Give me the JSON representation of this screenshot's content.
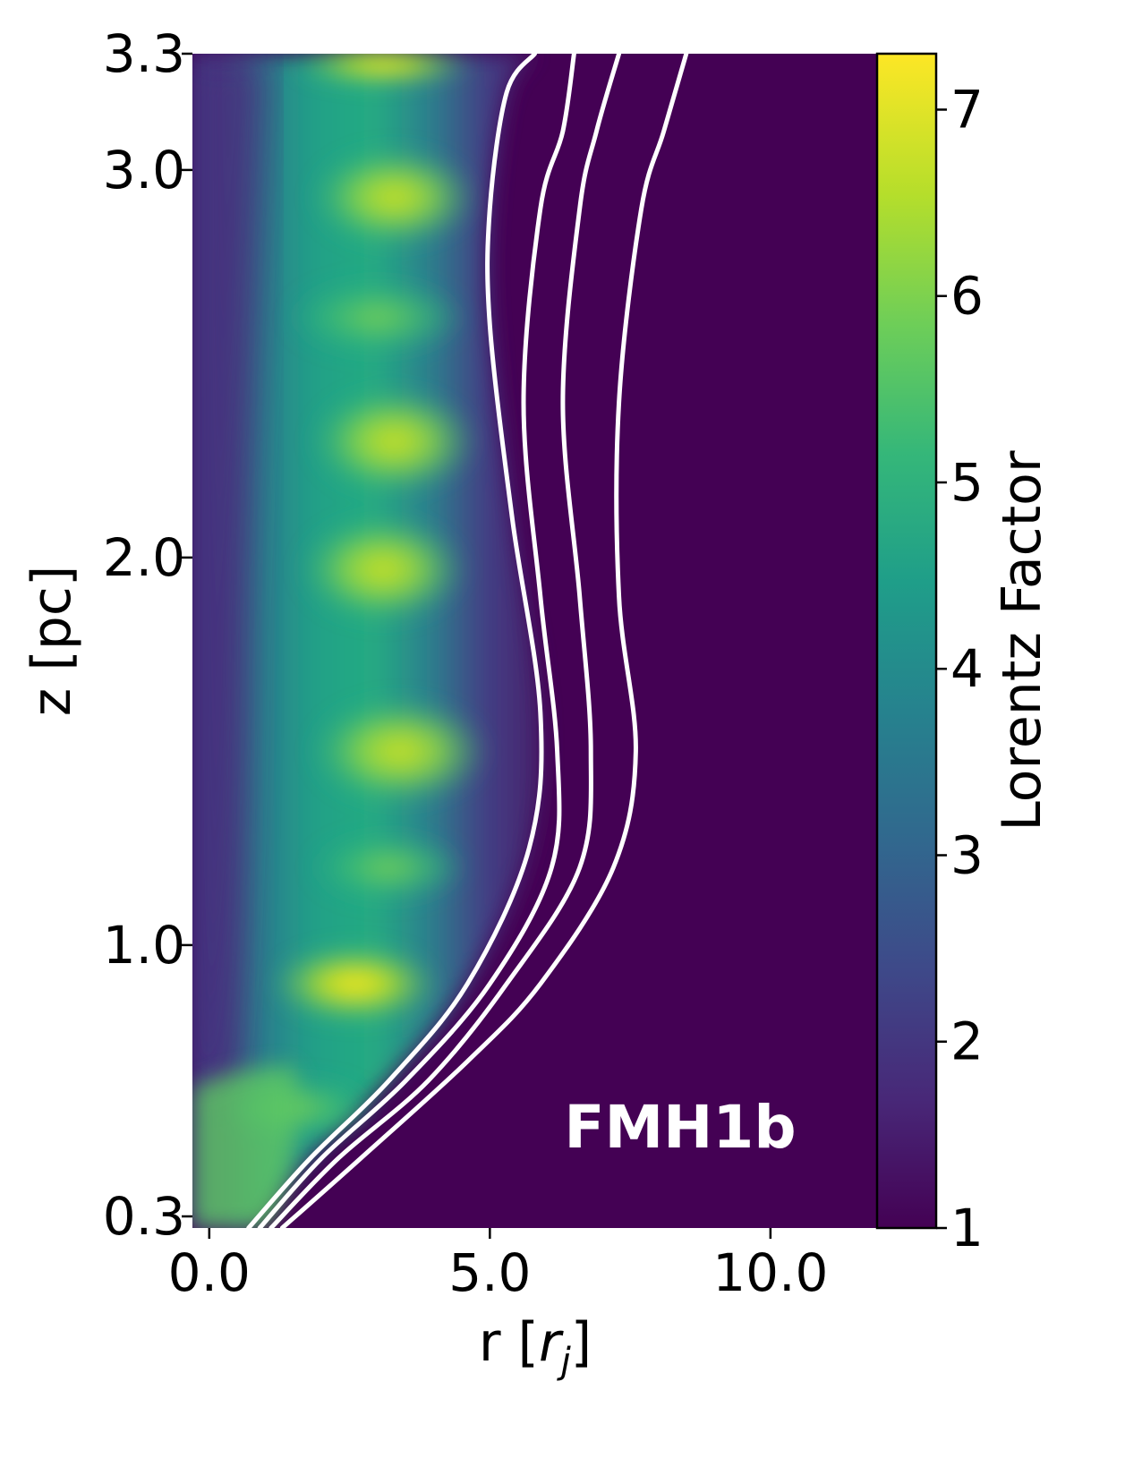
{
  "chart_data": {
    "type": "heatmap",
    "title": "",
    "xlabel": "r [",
    "xlabel_var": "r",
    "xlabel_sub": "j",
    "xlabel_close": "]",
    "ylabel": "z [pc]",
    "xlim": [
      -0.3,
      11.9
    ],
    "ylim": [
      0.27,
      3.3
    ],
    "x_ticks": [
      0.0,
      5.0,
      10.0
    ],
    "x_tick_labels": [
      "0.0",
      "5.0",
      "10.0"
    ],
    "y_ticks": [
      0.3,
      1.0,
      2.0,
      3.0,
      3.3
    ],
    "y_tick_labels": [
      "0.3",
      "1.0",
      "2.0",
      "3.0",
      "3.3"
    ],
    "colorbar": {
      "label": "Lorentz Factor",
      "range": [
        1,
        7.3
      ],
      "ticks": [
        1,
        2,
        3,
        4,
        5,
        6,
        7
      ],
      "tick_labels": [
        "1",
        "2",
        "3",
        "4",
        "5",
        "6",
        "7"
      ],
      "colormap": "viridis",
      "colors": [
        "#440154",
        "#482878",
        "#3e4989",
        "#31688e",
        "#26828e",
        "#1f9e89",
        "#35b779",
        "#6ece58",
        "#b5de2b",
        "#fde725"
      ]
    },
    "annotation": "FMH1b",
    "contours": [
      {
        "points": [
          [
            0.7,
            0.27
          ],
          [
            1.8,
            0.45
          ],
          [
            3.2,
            0.65
          ],
          [
            4.6,
            0.9
          ],
          [
            5.7,
            1.25
          ],
          [
            5.9,
            1.6
          ],
          [
            5.4,
            2.1
          ],
          [
            5.0,
            2.6
          ],
          [
            5.0,
            2.9
          ],
          [
            5.3,
            3.2
          ],
          [
            5.8,
            3.3
          ]
        ]
      },
      {
        "points": [
          [
            0.9,
            0.27
          ],
          [
            2.0,
            0.45
          ],
          [
            3.5,
            0.65
          ],
          [
            5.0,
            0.9
          ],
          [
            6.1,
            1.2
          ],
          [
            6.2,
            1.5
          ],
          [
            5.9,
            1.9
          ],
          [
            5.6,
            2.4
          ],
          [
            5.9,
            2.9
          ],
          [
            6.3,
            3.1
          ],
          [
            6.5,
            3.3
          ]
        ]
      },
      {
        "points": [
          [
            1.1,
            0.27
          ],
          [
            2.3,
            0.45
          ],
          [
            3.9,
            0.65
          ],
          [
            5.3,
            0.9
          ],
          [
            6.6,
            1.2
          ],
          [
            6.8,
            1.5
          ],
          [
            6.6,
            1.9
          ],
          [
            6.3,
            2.4
          ],
          [
            6.6,
            2.9
          ],
          [
            6.9,
            3.1
          ],
          [
            7.3,
            3.3
          ]
        ]
      },
      {
        "points": [
          [
            1.3,
            0.27
          ],
          [
            2.7,
            0.45
          ],
          [
            4.6,
            0.7
          ],
          [
            5.9,
            0.9
          ],
          [
            7.2,
            1.2
          ],
          [
            7.6,
            1.5
          ],
          [
            7.3,
            1.9
          ],
          [
            7.3,
            2.4
          ],
          [
            7.7,
            2.9
          ],
          [
            8.1,
            3.1
          ],
          [
            8.5,
            3.3
          ]
        ]
      }
    ],
    "grid": false,
    "legend": "none"
  }
}
